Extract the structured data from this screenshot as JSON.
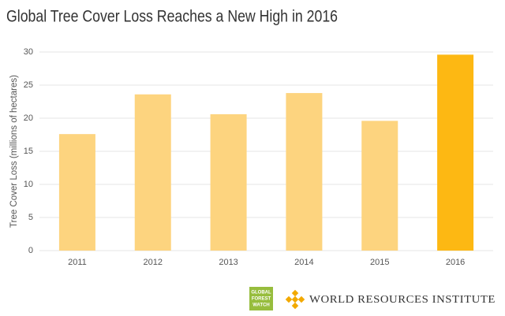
{
  "chart_data": {
    "type": "bar",
    "title": "Global Tree Cover Loss Reaches a New High in 2016",
    "y_label": "Tree Cover Loss (millions of hectares)",
    "categories": [
      "2011",
      "2012",
      "2013",
      "2014",
      "2015",
      "2016"
    ],
    "values": [
      17.6,
      23.6,
      20.6,
      23.8,
      19.6,
      29.6
    ],
    "colors": [
      "#fdd47f",
      "#fdd47f",
      "#fdd47f",
      "#fdd47f",
      "#fdd47f",
      "#fdb813"
    ],
    "ylim": [
      0,
      30
    ],
    "yticks": [
      0,
      5,
      10,
      15,
      20,
      25,
      30
    ],
    "grid": true
  },
  "logos": {
    "gfw": [
      "GLOBAL",
      "FOREST",
      "WATCH"
    ],
    "wri": "WORLD RESOURCES INSTITUTE"
  }
}
